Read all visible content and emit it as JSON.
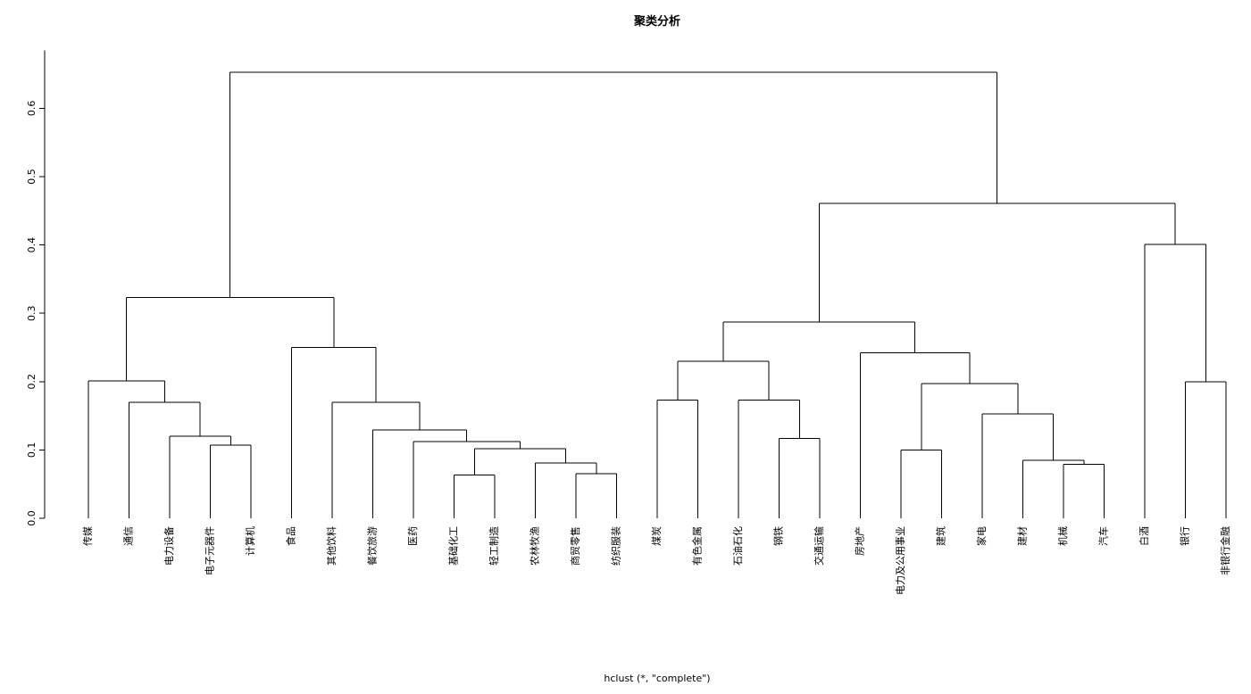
{
  "chart_data": {
    "type": "dendrogram",
    "title": "聚类分析",
    "subtitle": "hclust (*, \"complete\")",
    "xlabel": "",
    "ylabel": "",
    "ylim": [
      0,
      0.65
    ],
    "yticks": [
      0.0,
      0.1,
      0.2,
      0.3,
      0.4,
      0.5,
      0.6
    ],
    "ytick_labels": [
      "0.0",
      "0.1",
      "0.2",
      "0.3",
      "0.4",
      "0.5",
      "0.6"
    ],
    "leaves": [
      "传媒",
      "通信",
      "电力设备",
      "电子元器件",
      "计算机",
      "食品",
      "其他饮料",
      "餐饮旅游",
      "医药",
      "基础化工",
      "轻工制造",
      "农林牧渔",
      "商贸零售",
      "纺织服装",
      "煤炭",
      "有色金属",
      "石油石化",
      "钢铁",
      "交通运输",
      "房地产",
      "电力及公用事业",
      "建筑",
      "家电",
      "建材",
      "机械",
      "汽车",
      "白酒",
      "银行",
      "非银行金融"
    ],
    "merges": [
      {
        "a": 10,
        "b": 11,
        "height": 0.063
      },
      {
        "a": 13,
        "b": 14,
        "height": 0.065
      },
      {
        "a": 25,
        "b": 26,
        "height": 0.079
      },
      {
        "a": 12,
        "b": -2,
        "height": 0.081
      },
      {
        "a": 24,
        "b": -3,
        "height": 0.085
      },
      {
        "a": 21,
        "b": 22,
        "height": 0.1
      },
      {
        "a": -1,
        "b": -4,
        "height": 0.102
      },
      {
        "a": 4,
        "b": 5,
        "height": 0.107
      },
      {
        "a": 9,
        "b": -7,
        "height": 0.112
      },
      {
        "a": 18,
        "b": 19,
        "height": 0.117
      },
      {
        "a": 3,
        "b": -8,
        "height": 0.12
      },
      {
        "a": 8,
        "b": -9,
        "height": 0.129
      },
      {
        "a": 23,
        "b": -5,
        "height": 0.153
      },
      {
        "a": 2,
        "b": -11,
        "height": 0.17
      },
      {
        "a": 7,
        "b": -12,
        "height": 0.17
      },
      {
        "a": 15,
        "b": 16,
        "height": 0.173
      },
      {
        "a": 17,
        "b": -10,
        "height": 0.173
      },
      {
        "a": -6,
        "b": -13,
        "height": 0.197
      },
      {
        "a": 1,
        "b": -14,
        "height": 0.201
      },
      {
        "a": 28,
        "b": 29,
        "height": 0.2
      },
      {
        "a": -16,
        "b": -17,
        "height": 0.23
      },
      {
        "a": 20,
        "b": -18,
        "height": 0.242
      },
      {
        "a": 6,
        "b": -15,
        "height": 0.25
      },
      {
        "a": -21,
        "b": -22,
        "height": 0.287
      },
      {
        "a": -19,
        "b": -23,
        "height": 0.323
      },
      {
        "a": 27,
        "b": -20,
        "height": 0.401
      },
      {
        "a": -24,
        "b": -26,
        "height": 0.461
      },
      {
        "a": -25,
        "b": -27,
        "height": 0.653
      }
    ]
  }
}
